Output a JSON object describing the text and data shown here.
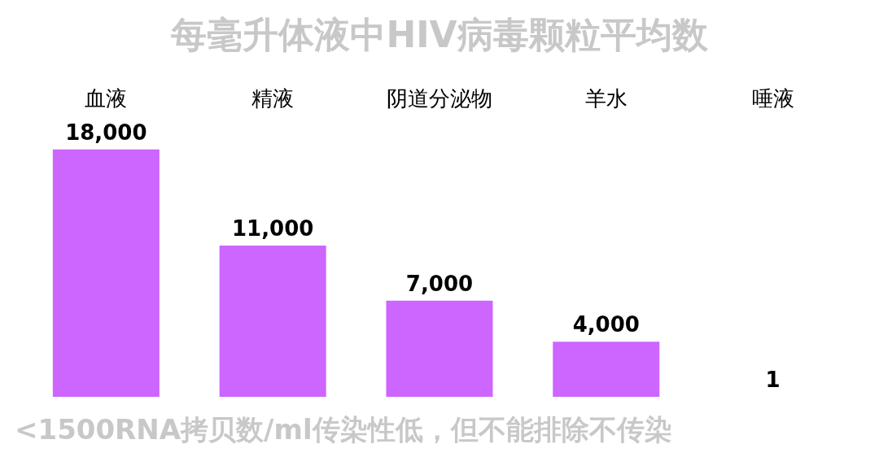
{
  "chart_data": {
    "type": "bar",
    "title": "每毫升体液中HIV病毒颗粒平均数",
    "categories": [
      "血液",
      "精液",
      "阴道分泌物",
      "羊水",
      "唾液"
    ],
    "values": [
      18000,
      11000,
      7000,
      4000,
      1
    ],
    "color": "#cc66ff",
    "value_labels": [
      "18,000",
      "11,000",
      "7,000",
      "4,000",
      "1"
    ],
    "grid": false,
    "legend": false,
    "annotations": [
      "<1500RNA拷贝数/ml传染性低，但不能排除不传染"
    ]
  }
}
